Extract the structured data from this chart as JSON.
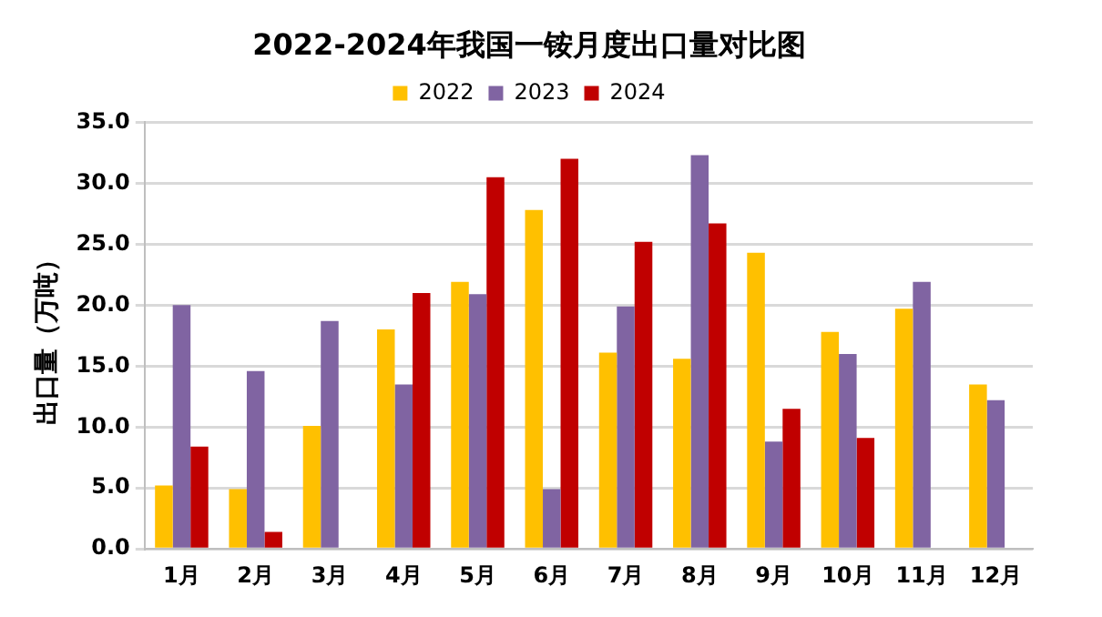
{
  "chart_data": {
    "type": "bar",
    "title": "2022-2024年我国一铵月度出口量对比图",
    "ylabel": "出口量（万吨）",
    "categories": [
      "1月",
      "2月",
      "3月",
      "4月",
      "5月",
      "6月",
      "7月",
      "8月",
      "9月",
      "10月",
      "11月",
      "12月"
    ],
    "series": [
      {
        "name": "2022",
        "color": "#ffc000",
        "values": [
          5.2,
          4.9,
          10.1,
          18.0,
          21.9,
          27.8,
          16.1,
          15.6,
          24.3,
          17.8,
          19.7,
          13.5
        ]
      },
      {
        "name": "2023",
        "color": "#8064a2",
        "values": [
          20.0,
          14.6,
          18.7,
          13.5,
          20.9,
          4.9,
          19.9,
          32.3,
          8.8,
          16.0,
          21.9,
          12.2
        ]
      },
      {
        "name": "2024",
        "color": "#c00000",
        "values": [
          8.4,
          1.4,
          null,
          21.0,
          30.5,
          32.0,
          25.2,
          26.7,
          11.5,
          9.1,
          null,
          null
        ]
      }
    ],
    "ylim": [
      0,
      35
    ],
    "yticks": [
      {
        "value": 0,
        "label": "0.0"
      },
      {
        "value": 5,
        "label": "5.0"
      },
      {
        "value": 10,
        "label": "10.0"
      },
      {
        "value": 15,
        "label": "15.0"
      },
      {
        "value": 20,
        "label": "20.0"
      },
      {
        "value": 25,
        "label": "25.0"
      },
      {
        "value": 30,
        "label": "30.0"
      },
      {
        "value": 35,
        "label": "35.0"
      }
    ],
    "grid": "y",
    "legend": "top"
  }
}
